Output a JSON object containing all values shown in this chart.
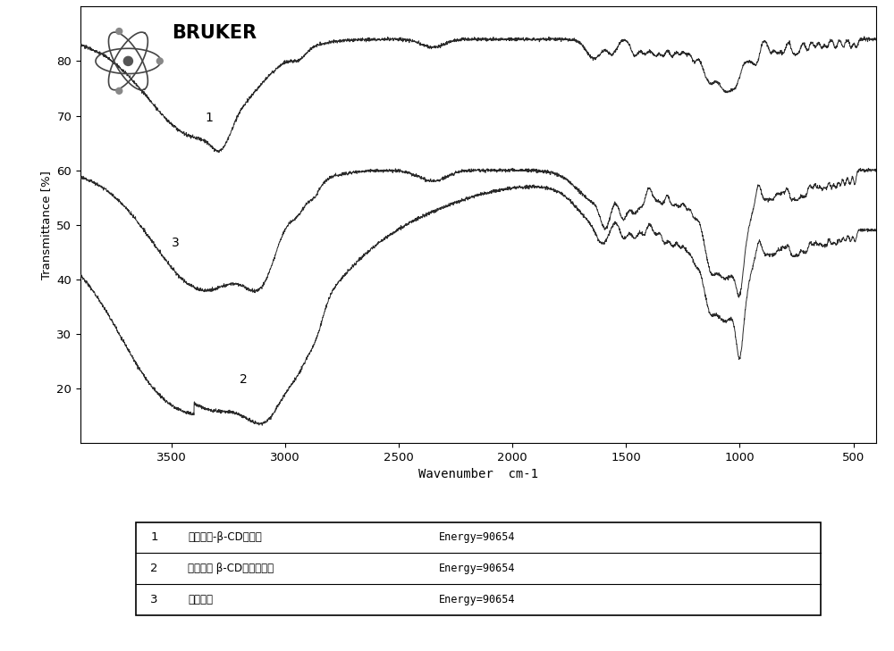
{
  "title": "",
  "xlabel": "Wavenumber  cm-1",
  "ylabel": "Transmittance [%]",
  "xlim": [
    3900,
    400
  ],
  "ylim": [
    10,
    90
  ],
  "yticks": [
    20,
    30,
    40,
    50,
    60,
    70,
    80
  ],
  "xticks": [
    3500,
    3000,
    2500,
    2000,
    1500,
    1000,
    500
  ],
  "background_color": "#ffffff",
  "plot_bg_color": "#ffffff",
  "line_color": "#2a2a2a",
  "legend_entries": [
    {
      "num": "1",
      "label": "异吉草素-β-CD包合物",
      "energy": "Energy=90654"
    },
    {
      "num": "2",
      "label": "异吉草素 β-CD物理混合物",
      "energy": "Energy=90654"
    },
    {
      "num": "3",
      "label": "异吉草素",
      "energy": "Energy=90654"
    }
  ]
}
